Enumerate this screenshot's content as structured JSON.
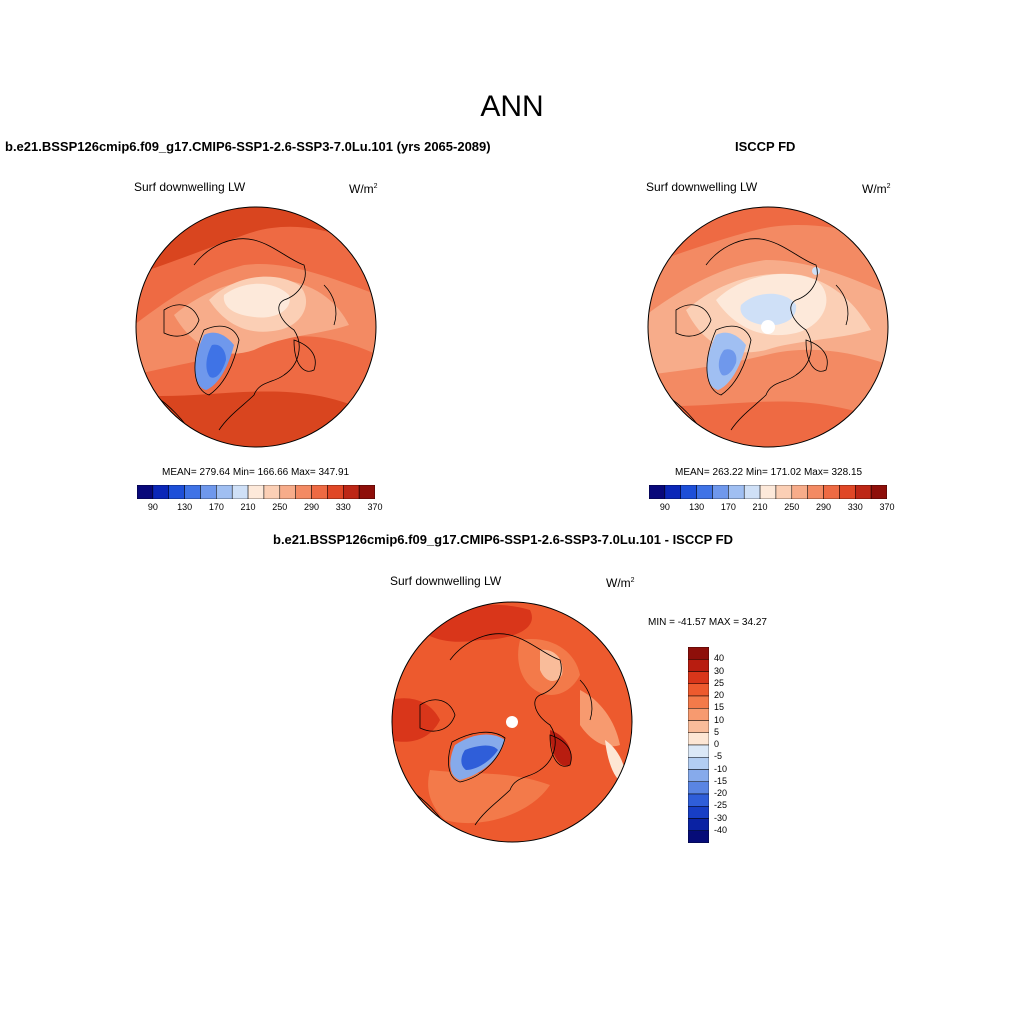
{
  "title": "ANN",
  "variable": "Surf downwelling LW",
  "units_base": "W/m",
  "units_exp": "2",
  "panels": {
    "model": {
      "title": "b.e21.BSSP126cmip6.f09_g17.CMIP6-SSP1-2.6-SSP3-7.0Lu.101 (yrs 2065-2089)",
      "stats": "MEAN= 279.64  Min= 166.66  Max= 347.91"
    },
    "obs": {
      "title": "ISCCP FD",
      "stats": "MEAN= 263.22  Min= 171.02  Max= 328.15"
    },
    "diff": {
      "title": "b.e21.BSSP126cmip6.f09_g17.CMIP6-SSP1-2.6-SSP3-7.0Lu.101 - ISCCP FD",
      "stats": "MIN = -41.57 MAX =  34.27"
    }
  },
  "colorbar_abs": {
    "colors": [
      "#08087a",
      "#0b27b8",
      "#1d4fd8",
      "#3f73e6",
      "#6f98ec",
      "#a0bff2",
      "#cfe0f7",
      "#fde9da",
      "#fbcfb5",
      "#f7ac8a",
      "#f38a63",
      "#ee6a43",
      "#e04726",
      "#bd2716",
      "#8e0f0a"
    ],
    "labels": [
      "90",
      "130",
      "170",
      "210",
      "250",
      "290",
      "330",
      "370"
    ]
  },
  "colorbar_diff": {
    "colors": [
      "#8e0f0a",
      "#b81d10",
      "#d9361a",
      "#ed5a2e",
      "#f37a4a",
      "#f79a6f",
      "#f9bc9a",
      "#fde6d4",
      "#dbe8f7",
      "#b2cdf2",
      "#86aaeb",
      "#5a85e3",
      "#2f5ed9",
      "#173ec5",
      "#0a22a3",
      "#060c78"
    ],
    "labels": [
      "40",
      "30",
      "25",
      "20",
      "15",
      "10",
      "5",
      "0",
      "-5",
      "-10",
      "-15",
      "-20",
      "-25",
      "-30",
      "-40"
    ]
  },
  "colors": {
    "warm_dark": "#c93a1c",
    "warm": "#ee6a43",
    "warm_light": "#f7ac8a",
    "pale": "#fde9da",
    "cold": "#6f98ec",
    "cold_dark": "#3f73e6"
  }
}
